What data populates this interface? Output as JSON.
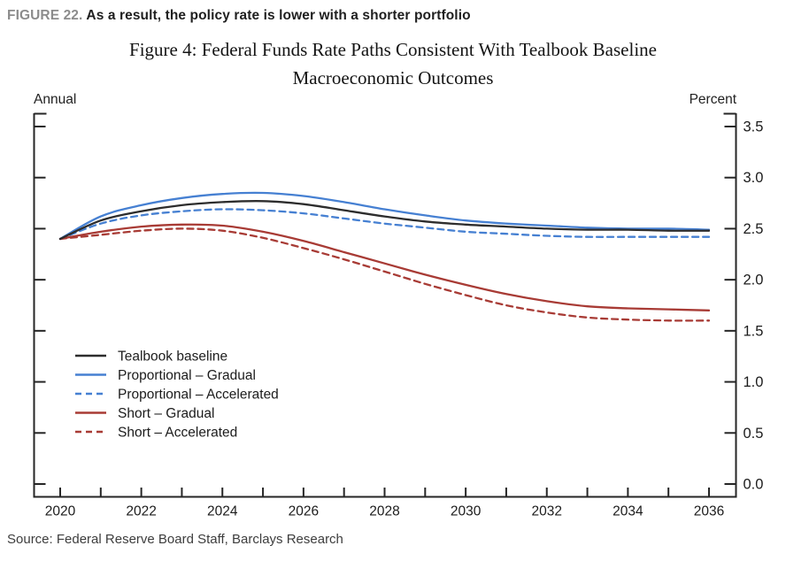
{
  "header": {
    "figure_label": "FIGURE 22.",
    "figure_caption": "As a result, the policy rate is lower with a shorter portfolio"
  },
  "title": {
    "line1": "Figure 4: Federal Funds Rate Paths Consistent With Tealbook Baseline",
    "line2": "Macroeconomic Outcomes"
  },
  "axis_captions": {
    "left": "Annual",
    "right": "Percent"
  },
  "source": "Source: Federal Reserve Board Staff, Barclays Research",
  "colors": {
    "figure_label": "#8c8c8c",
    "axis": "#262626",
    "black_line": "#2d2d2d",
    "blue_line": "#4680d2",
    "red_line": "#a83b35"
  },
  "chart_data": {
    "type": "line",
    "x": [
      2020,
      2021,
      2022,
      2023,
      2024,
      2025,
      2026,
      2027,
      2028,
      2029,
      2030,
      2031,
      2032,
      2033,
      2034,
      2035,
      2036
    ],
    "x_label_years": [
      2020,
      2022,
      2024,
      2026,
      2028,
      2030,
      2032,
      2034,
      2036
    ],
    "y_tick_labels": [
      "0.0",
      "0.5",
      "1.0",
      "1.5",
      "2.0",
      "2.5",
      "3.0",
      "3.5"
    ],
    "ylim": [
      0.0,
      3.5
    ],
    "grid": false,
    "legend_position": "inside-left-middle",
    "series": [
      {
        "name": "Tealbook baseline",
        "color": "#2d2d2d",
        "dash": "solid",
        "values": [
          2.4,
          2.58,
          2.67,
          2.73,
          2.76,
          2.77,
          2.74,
          2.68,
          2.62,
          2.57,
          2.54,
          2.52,
          2.5,
          2.49,
          2.49,
          2.48,
          2.48
        ]
      },
      {
        "name": "Proportional – Gradual",
        "color": "#4680d2",
        "dash": "solid",
        "values": [
          2.4,
          2.62,
          2.73,
          2.8,
          2.84,
          2.85,
          2.82,
          2.76,
          2.69,
          2.63,
          2.58,
          2.55,
          2.53,
          2.51,
          2.5,
          2.5,
          2.49
        ]
      },
      {
        "name": "Proportional – Accelerated",
        "color": "#4680d2",
        "dash": "dashed",
        "values": [
          2.4,
          2.55,
          2.63,
          2.67,
          2.69,
          2.68,
          2.65,
          2.6,
          2.55,
          2.51,
          2.47,
          2.45,
          2.43,
          2.42,
          2.42,
          2.42,
          2.42
        ]
      },
      {
        "name": "Short – Gradual",
        "color": "#a83b35",
        "dash": "solid",
        "values": [
          2.4,
          2.47,
          2.52,
          2.54,
          2.53,
          2.47,
          2.38,
          2.27,
          2.16,
          2.05,
          1.95,
          1.86,
          1.79,
          1.74,
          1.72,
          1.71,
          1.7
        ]
      },
      {
        "name": "Short – Accelerated",
        "color": "#a83b35",
        "dash": "dashed",
        "values": [
          2.4,
          2.44,
          2.48,
          2.5,
          2.48,
          2.41,
          2.31,
          2.2,
          2.08,
          1.96,
          1.85,
          1.75,
          1.68,
          1.63,
          1.61,
          1.6,
          1.6
        ]
      }
    ]
  }
}
